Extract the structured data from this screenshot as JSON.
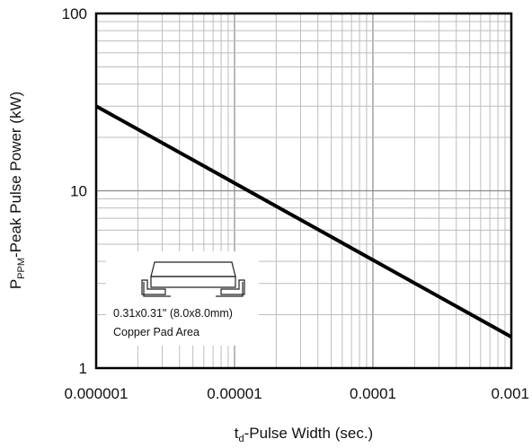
{
  "chart_data": {
    "type": "line",
    "x_scale": "log",
    "y_scale": "log",
    "xlim": [
      1e-06,
      0.001
    ],
    "ylim": [
      1,
      100
    ],
    "x_ticks": [
      {
        "value": 1e-06,
        "label": "0.000001"
      },
      {
        "value": 1e-05,
        "label": "0.00001"
      },
      {
        "value": 0.0001,
        "label": "0.0001"
      },
      {
        "value": 0.001,
        "label": "0.001"
      }
    ],
    "y_ticks": [
      {
        "value": 1,
        "label": "1"
      },
      {
        "value": 10,
        "label": "10"
      },
      {
        "value": 100,
        "label": "100"
      }
    ],
    "grid": true,
    "series": [
      {
        "x": [
          1e-06,
          0.001
        ],
        "y": [
          30,
          1.5
        ],
        "color": "#000000"
      }
    ],
    "xlabel": {
      "main": "t",
      "sub": "d",
      "rest": "-Pulse Width (sec.)"
    },
    "ylabel": {
      "main": "P",
      "sub": "PPM",
      "rest": "-Peak Pulse Power (kW)"
    },
    "annotation": {
      "icon": "copper-pad-package-icon",
      "line1": "0.31x0.31\" (8.0x8.0mm)",
      "line2": "Copper Pad Area"
    }
  }
}
